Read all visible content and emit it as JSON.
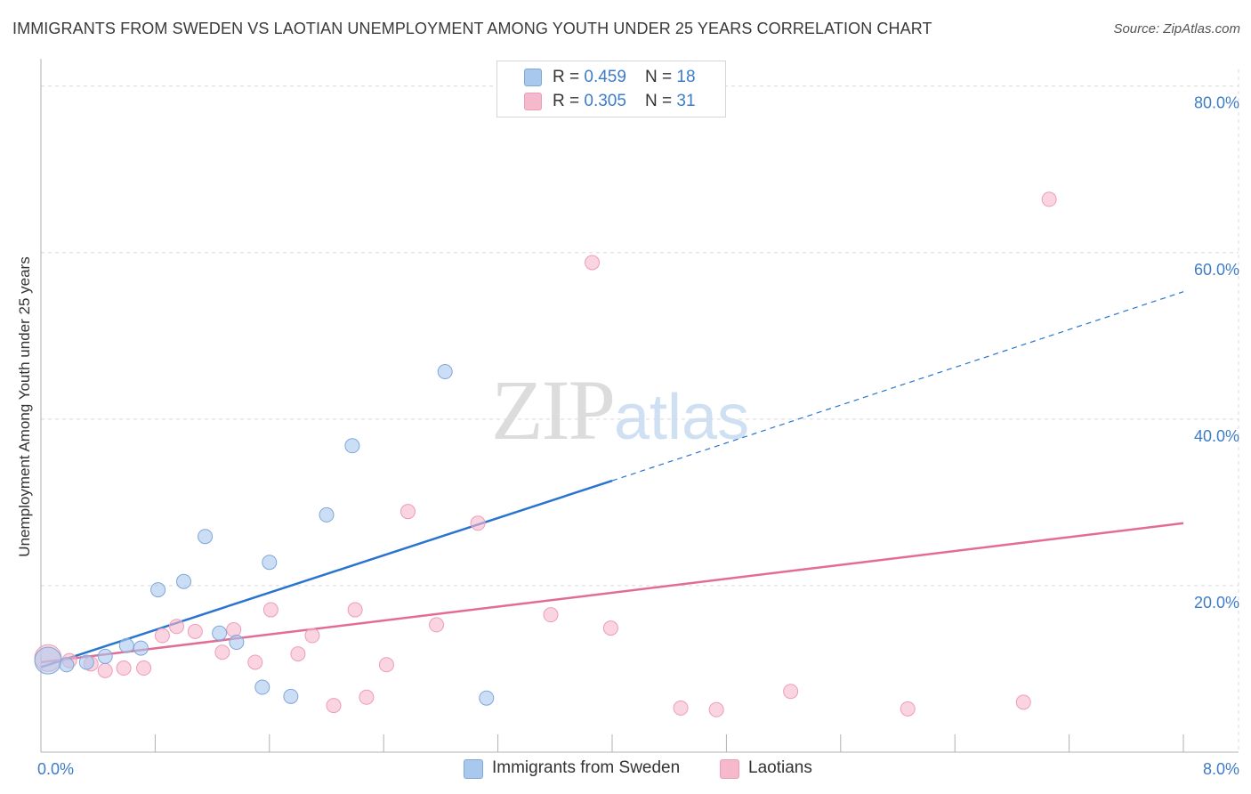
{
  "title": "IMMIGRANTS FROM SWEDEN VS LAOTIAN UNEMPLOYMENT AMONG YOUTH UNDER 25 YEARS CORRELATION CHART",
  "source": "Source: ZipAtlas.com",
  "watermark": {
    "zip": "ZIP",
    "atlas": "atlas"
  },
  "legend": {
    "rows": [
      {
        "r_label": "R = ",
        "r_value": "0.459",
        "n_label": "N = ",
        "n_value": "18",
        "color": "#a9c8ee"
      },
      {
        "r_label": "R = ",
        "r_value": "0.305",
        "n_label": "N = ",
        "n_value": "31",
        "color": "#f6b8cb"
      }
    ]
  },
  "bottom_legend": {
    "sweden": "Immigrants from Sweden",
    "laotians": "Laotians"
  },
  "colors": {
    "blue_fill": "#a9c8ee",
    "blue_stroke": "#7fa7d8",
    "blue_line": "#2a74d0",
    "pink_fill": "#f6b8cb",
    "pink_stroke": "#ee9db6",
    "pink_line": "#e36c95",
    "grid": "#d9d9d9",
    "tick_text": "#3d7cc9"
  },
  "chart_data": {
    "type": "scatter",
    "title": "IMMIGRANTS FROM SWEDEN VS LAOTIAN UNEMPLOYMENT AMONG YOUTH UNDER 25 YEARS CORRELATION CHART",
    "xlabel": "",
    "ylabel": "Unemployment Among Youth under 25 years",
    "xlim": [
      0,
      8
    ],
    "ylim": [
      0,
      82
    ],
    "x_tick_labels": [
      "0.0%",
      "8.0%"
    ],
    "y_tick_labels": [
      "20.0%",
      "40.0%",
      "60.0%",
      "80.0%"
    ],
    "y_tick_values": [
      20,
      40,
      60,
      80
    ],
    "series": [
      {
        "name": "Immigrants from Sweden",
        "points": [
          {
            "x": 0.05,
            "y": 11.0,
            "big": true
          },
          {
            "x": 0.18,
            "y": 10.5
          },
          {
            "x": 0.32,
            "y": 10.8
          },
          {
            "x": 0.45,
            "y": 11.5
          },
          {
            "x": 0.6,
            "y": 12.8
          },
          {
            "x": 0.7,
            "y": 12.5
          },
          {
            "x": 0.82,
            "y": 19.5
          },
          {
            "x": 1.0,
            "y": 20.5
          },
          {
            "x": 1.15,
            "y": 25.9
          },
          {
            "x": 1.25,
            "y": 14.3
          },
          {
            "x": 1.37,
            "y": 13.2
          },
          {
            "x": 1.55,
            "y": 7.8
          },
          {
            "x": 1.6,
            "y": 22.8
          },
          {
            "x": 1.75,
            "y": 6.7
          },
          {
            "x": 2.0,
            "y": 28.5
          },
          {
            "x": 2.18,
            "y": 36.8
          },
          {
            "x": 2.83,
            "y": 45.7
          },
          {
            "x": 3.12,
            "y": 6.5
          }
        ],
        "trend": {
          "x0": 0.0,
          "y0": 10.2,
          "x1": 4.0,
          "y1": 32.6,
          "x_dash_end": 8.0,
          "y_dash_end": 55.3
        }
      },
      {
        "name": "Laotians",
        "points": [
          {
            "x": 0.05,
            "y": 11.3,
            "big": true
          },
          {
            "x": 0.2,
            "y": 11.0
          },
          {
            "x": 0.35,
            "y": 10.6
          },
          {
            "x": 0.45,
            "y": 9.8
          },
          {
            "x": 0.58,
            "y": 10.1
          },
          {
            "x": 0.72,
            "y": 10.1
          },
          {
            "x": 0.85,
            "y": 14.0
          },
          {
            "x": 0.95,
            "y": 15.1
          },
          {
            "x": 1.08,
            "y": 14.5
          },
          {
            "x": 1.27,
            "y": 12.0
          },
          {
            "x": 1.35,
            "y": 14.7
          },
          {
            "x": 1.5,
            "y": 10.8
          },
          {
            "x": 1.61,
            "y": 17.1
          },
          {
            "x": 1.8,
            "y": 11.8
          },
          {
            "x": 1.9,
            "y": 14.0
          },
          {
            "x": 2.05,
            "y": 5.6
          },
          {
            "x": 2.2,
            "y": 17.1
          },
          {
            "x": 2.28,
            "y": 6.6
          },
          {
            "x": 2.42,
            "y": 10.5
          },
          {
            "x": 2.57,
            "y": 28.9
          },
          {
            "x": 2.77,
            "y": 15.3
          },
          {
            "x": 3.06,
            "y": 27.5
          },
          {
            "x": 3.57,
            "y": 16.5
          },
          {
            "x": 3.86,
            "y": 58.8
          },
          {
            "x": 3.99,
            "y": 14.9
          },
          {
            "x": 4.48,
            "y": 5.3
          },
          {
            "x": 4.73,
            "y": 5.1
          },
          {
            "x": 5.25,
            "y": 7.3
          },
          {
            "x": 6.07,
            "y": 5.2
          },
          {
            "x": 6.88,
            "y": 6.0
          },
          {
            "x": 7.06,
            "y": 66.4
          }
        ],
        "trend": {
          "x0": 0.0,
          "y0": 10.8,
          "x1": 8.0,
          "y1": 27.5
        }
      }
    ]
  }
}
